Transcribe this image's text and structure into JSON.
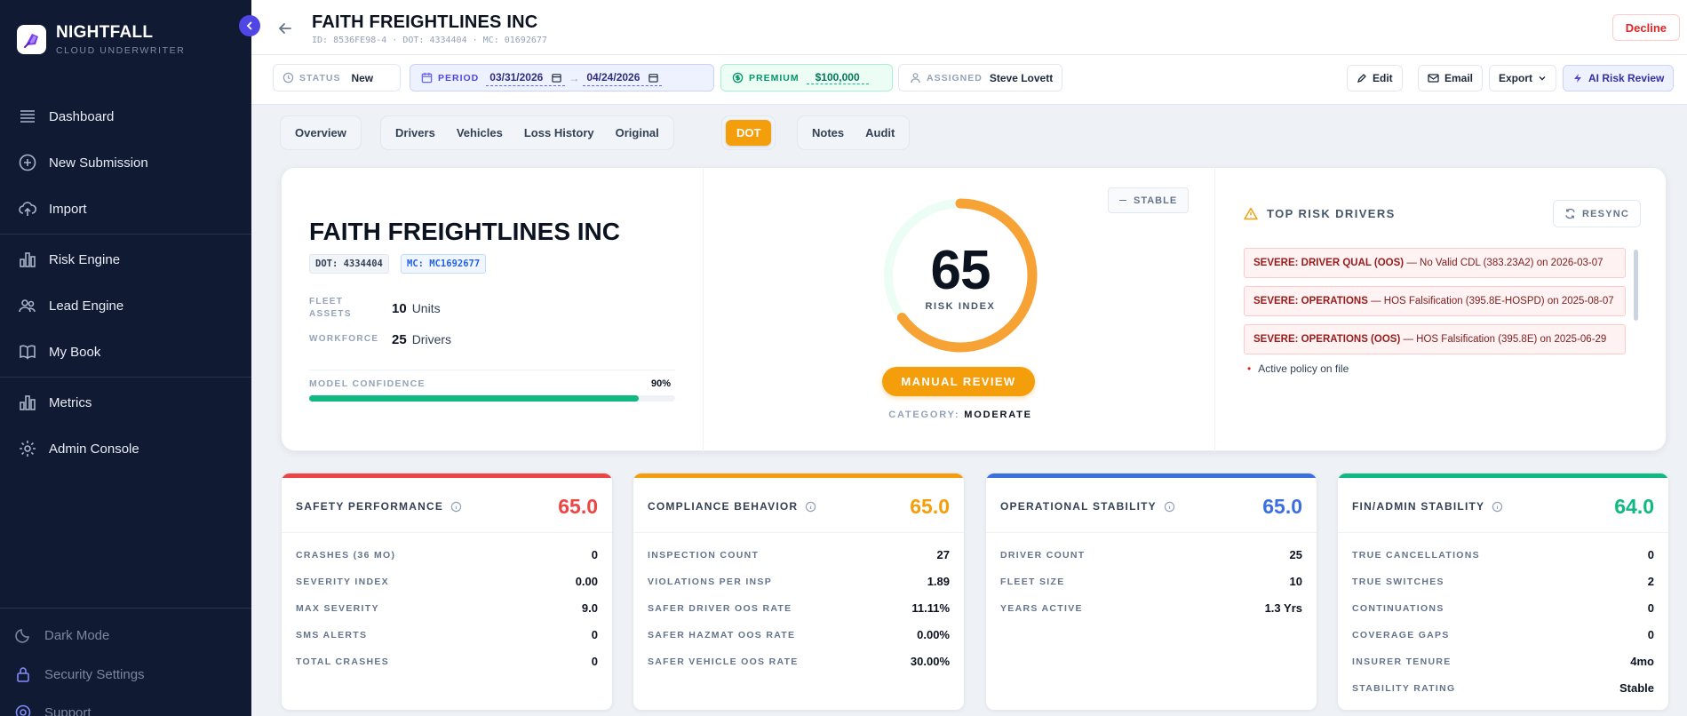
{
  "brand": {
    "name": "NIGHTFALL",
    "subtitle": "CLOUD UNDERWRITER"
  },
  "sidebar": {
    "items": [
      {
        "label": "Dashboard",
        "icon": "list-icon"
      },
      {
        "label": "New Submission",
        "icon": "plus-circle-icon"
      },
      {
        "label": "Import",
        "icon": "upload-icon"
      },
      {
        "label": "Risk Engine",
        "icon": "bar-chart-icon"
      },
      {
        "label": "Lead Engine",
        "icon": "users-icon"
      },
      {
        "label": "My Book",
        "icon": "book-icon"
      },
      {
        "label": "Metrics",
        "icon": "bar-chart-icon"
      },
      {
        "label": "Admin Console",
        "icon": "gear-icon"
      }
    ],
    "bottom": [
      {
        "label": "Dark Mode",
        "icon": "moon-icon"
      },
      {
        "label": "Security Settings",
        "icon": "lock-icon"
      },
      {
        "label": "Support",
        "icon": "help-icon"
      }
    ]
  },
  "header": {
    "title": "FAITH FREIGHTLINES INC",
    "ids": "ID: 8536FE98-4 · DOT: 4334404 · MC: 01692677",
    "decline": "Decline"
  },
  "toolbar": {
    "status_label": "STATUS",
    "status_value": "New",
    "period_label": "PERIOD",
    "period_start": "03/31/2026",
    "period_end": "04/24/2026",
    "premium_label": "PREMIUM",
    "premium_value": "$100,000",
    "assigned_label": "ASSIGNED",
    "assigned_value": "Steve Lovett",
    "edit": "Edit",
    "email": "Email",
    "export": "Export",
    "ai_review": "AI Risk Review"
  },
  "tabs": {
    "group1": [
      "Overview"
    ],
    "group2": [
      "Drivers",
      "Vehicles",
      "Loss History",
      "Original"
    ],
    "group3": [
      "DOT"
    ],
    "group4": [
      "Notes",
      "Audit"
    ],
    "active": "DOT"
  },
  "hero": {
    "title": "FAITH FREIGHTLINES INC",
    "dot_badge": "DOT: 4334404",
    "mc_badge": "MC: MC1692677",
    "fleet_label": "FLEET ASSETS",
    "fleet_value": "10",
    "fleet_unit": "Units",
    "workforce_label": "WORKFORCE",
    "workforce_value": "25",
    "workforce_unit": "Drivers",
    "confidence_label": "MODEL CONFIDENCE",
    "confidence_text": "90%",
    "confidence_value": 0.9,
    "risk_index": "65",
    "risk_index_value": 65,
    "risk_label": "RISK INDEX",
    "trend": "STABLE",
    "action": "MANUAL REVIEW",
    "category_label": "CATEGORY:",
    "category_value": "MODERATE",
    "gauge_color": "#f7a234"
  },
  "risk_drivers": {
    "title": "TOP RISK DRIVERS",
    "resync": "RESYNC",
    "items": [
      {
        "severity": "SEVERE: DRIVER QUAL (OOS)",
        "detail": "— No Valid CDL (383.23A2) on 2026-03-07"
      },
      {
        "severity": "SEVERE: OPERATIONS",
        "detail": "— HOS Falsification (395.8E-HOSPD) on 2025-08-07"
      },
      {
        "severity": "SEVERE: OPERATIONS (OOS)",
        "detail": "— HOS Falsification (395.8E) on 2025-06-29"
      }
    ],
    "extra": "Active policy on file"
  },
  "cards": [
    {
      "title": "SAFETY PERFORMANCE",
      "score": "65.0",
      "color": "#ef4444",
      "rows": [
        {
          "k": "CRASHES (36 MO)",
          "v": "0"
        },
        {
          "k": "SEVERITY INDEX",
          "v": "0.00"
        },
        {
          "k": "MAX SEVERITY",
          "v": "9.0"
        },
        {
          "k": "SMS ALERTS",
          "v": "0"
        },
        {
          "k": "TOTAL CRASHES",
          "v": "0"
        }
      ]
    },
    {
      "title": "COMPLIANCE BEHAVIOR",
      "score": "65.0",
      "color": "#f59e0b",
      "rows": [
        {
          "k": "INSPECTION COUNT",
          "v": "27"
        },
        {
          "k": "VIOLATIONS PER INSP",
          "v": "1.89"
        },
        {
          "k": "SAFER DRIVER OOS RATE",
          "v": "11.11%"
        },
        {
          "k": "SAFER HAZMAT OOS RATE",
          "v": "0.00%"
        },
        {
          "k": "SAFER VEHICLE OOS RATE",
          "v": "30.00%"
        }
      ]
    },
    {
      "title": "OPERATIONAL STABILITY",
      "score": "65.0",
      "color": "#3b6fe0",
      "rows": [
        {
          "k": "DRIVER COUNT",
          "v": "25"
        },
        {
          "k": "FLEET SIZE",
          "v": "10"
        },
        {
          "k": "YEARS ACTIVE",
          "v": "1.3 Yrs"
        }
      ]
    },
    {
      "title": "FIN/ADMIN STABILITY",
      "score": "64.0",
      "color": "#10b981",
      "rows": [
        {
          "k": "TRUE CANCELLATIONS",
          "v": "0"
        },
        {
          "k": "TRUE SWITCHES",
          "v": "2"
        },
        {
          "k": "CONTINUATIONS",
          "v": "0"
        },
        {
          "k": "COVERAGE GAPS",
          "v": "0"
        },
        {
          "k": "INSURER TENURE",
          "v": "4mo"
        },
        {
          "k": "STABILITY RATING",
          "v": "Stable"
        }
      ]
    }
  ]
}
